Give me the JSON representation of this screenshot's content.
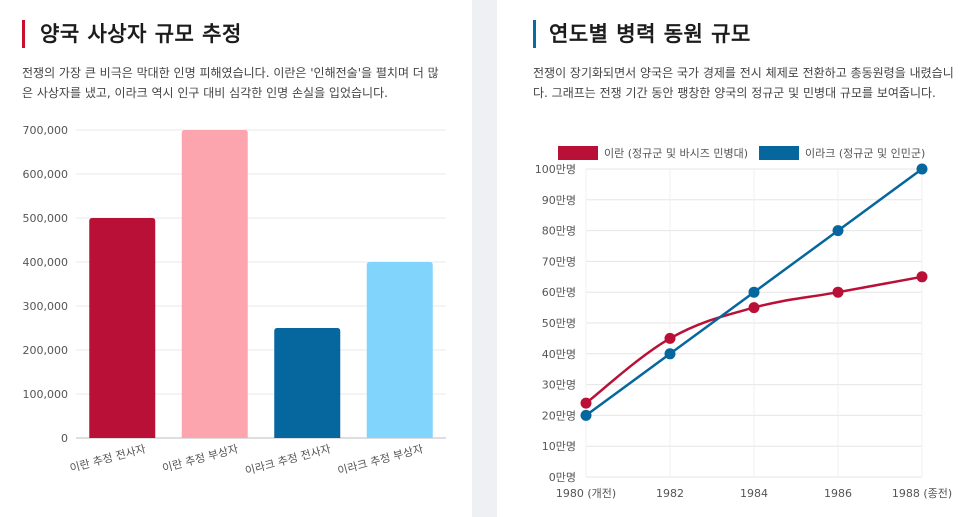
{
  "left_panel": {
    "title": "양국 사상자 규모 추정",
    "description": "전쟁의 가장 큰 비극은 막대한 인명 피해였습니다. 이란은 '인해전술'을 펼치며 더 많은 사상자를 냈고, 이라크 역시 인구 대비 심각한 인명 손실을 입었습니다.",
    "accent_color": "#c8102e"
  },
  "right_panel": {
    "title": "연도별 병력 동원 규모",
    "description": "전쟁이 장기화되면서 양국은 국가 경제를 전시 체제로 전환하고 총동원령을 내렸습니다. 그래프는 전쟁 기간 동안 팽창한 양국의 정규군 및 민병대 규모를 보여줍니다.",
    "accent_color": "#0a6aa1"
  },
  "chart_data": [
    {
      "type": "bar",
      "title": "양국 사상자 규모 추정",
      "categories": [
        "이란 추정 전사자",
        "이란 추정 부상자",
        "이라크 추정 전사자",
        "이라크 추정 부상자"
      ],
      "values": [
        500000,
        700000,
        250000,
        400000
      ],
      "colors": [
        "#b91038",
        "#fca5ae",
        "#05679e",
        "#81d4fc"
      ],
      "ylim": [
        0,
        700000
      ],
      "yticks": [
        0,
        100000,
        200000,
        300000,
        400000,
        500000,
        600000,
        700000
      ],
      "ytick_labels": [
        "0",
        "100,000",
        "200,000",
        "300,000",
        "400,000",
        "500,000",
        "600,000",
        "700,000"
      ],
      "grid": true
    },
    {
      "type": "line",
      "title": "연도별 병력 동원 규모",
      "x": [
        1980,
        1982,
        1984,
        1986,
        1988
      ],
      "xtick_labels": [
        "1980 (개전)",
        "1982",
        "1984",
        "1986",
        "1988 (종전)"
      ],
      "series": [
        {
          "name": "이란 (정규군 및 바시즈 민병대)",
          "values": [
            24,
            45,
            55,
            60,
            65
          ],
          "color": "#b91038"
        },
        {
          "name": "이라크 (정규군 및 인민군)",
          "values": [
            20,
            40,
            60,
            80,
            100
          ],
          "color": "#05679e"
        }
      ],
      "ylim": [
        0,
        100
      ],
      "yticks": [
        0,
        10,
        20,
        30,
        40,
        50,
        60,
        70,
        80,
        90,
        100
      ],
      "ytick_labels": [
        "0만명",
        "10만명",
        "20만명",
        "30만명",
        "40만명",
        "50만명",
        "60만명",
        "70만명",
        "80만명",
        "90만명",
        "100만명"
      ],
      "legend": "top",
      "grid": true
    }
  ]
}
